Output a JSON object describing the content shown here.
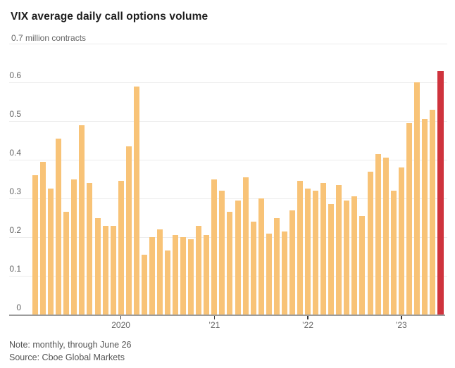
{
  "header": {
    "title": "VIX average daily call options volume"
  },
  "chart_data": {
    "type": "bar",
    "title": "VIX average daily call options volume",
    "ylabel": "",
    "xlabel": "",
    "unit": "million contracts",
    "ylim": [
      0,
      0.7
    ],
    "grid": true,
    "categories": [
      "2019-02",
      "2019-03",
      "2019-04",
      "2019-05",
      "2019-06",
      "2019-07",
      "2019-08",
      "2019-09",
      "2019-10",
      "2019-11",
      "2019-12",
      "2020-01",
      "2020-02",
      "2020-03",
      "2020-04",
      "2020-05",
      "2020-06",
      "2020-07",
      "2020-08",
      "2020-09",
      "2020-10",
      "2020-11",
      "2020-12",
      "2021-01",
      "2021-02",
      "2021-03",
      "2021-04",
      "2021-05",
      "2021-06",
      "2021-07",
      "2021-08",
      "2021-09",
      "2021-10",
      "2021-11",
      "2021-12",
      "2022-01",
      "2022-02",
      "2022-03",
      "2022-04",
      "2022-05",
      "2022-06",
      "2022-07",
      "2022-08",
      "2022-09",
      "2022-10",
      "2022-11",
      "2022-12",
      "2023-01",
      "2023-02",
      "2023-03",
      "2023-04",
      "2023-05",
      "2023-06"
    ],
    "values": [
      0.36,
      0.395,
      0.325,
      0.455,
      0.265,
      0.35,
      0.49,
      0.34,
      0.25,
      0.23,
      0.23,
      0.345,
      0.435,
      0.59,
      0.155,
      0.2,
      0.22,
      0.165,
      0.205,
      0.2,
      0.195,
      0.23,
      0.205,
      0.35,
      0.32,
      0.265,
      0.295,
      0.355,
      0.24,
      0.3,
      0.21,
      0.25,
      0.215,
      0.27,
      0.345,
      0.325,
      0.32,
      0.34,
      0.285,
      0.335,
      0.295,
      0.305,
      0.255,
      0.37,
      0.415,
      0.405,
      0.32,
      0.38,
      0.495,
      0.6,
      0.505,
      0.53,
      0.63
    ],
    "highlight_index": 52,
    "y_axis": {
      "top_label": "0.7 million contracts",
      "tick_labels": [
        "0",
        "0.1",
        "0.2",
        "0.3",
        "0.4",
        "0.5",
        "0.6"
      ]
    },
    "x_axis": {
      "ticks": [
        {
          "label": "2020",
          "index": 11
        },
        {
          "label": "’21",
          "index": 23
        },
        {
          "label": "’22",
          "index": 35
        },
        {
          "label": "’23",
          "index": 47
        }
      ]
    },
    "colors": {
      "bar": "#f8c377",
      "highlight": "#cf333d"
    },
    "legend": null
  },
  "footer": {
    "note": "Note: monthly, through June 26",
    "source": "Source: Cboe Global Markets"
  }
}
